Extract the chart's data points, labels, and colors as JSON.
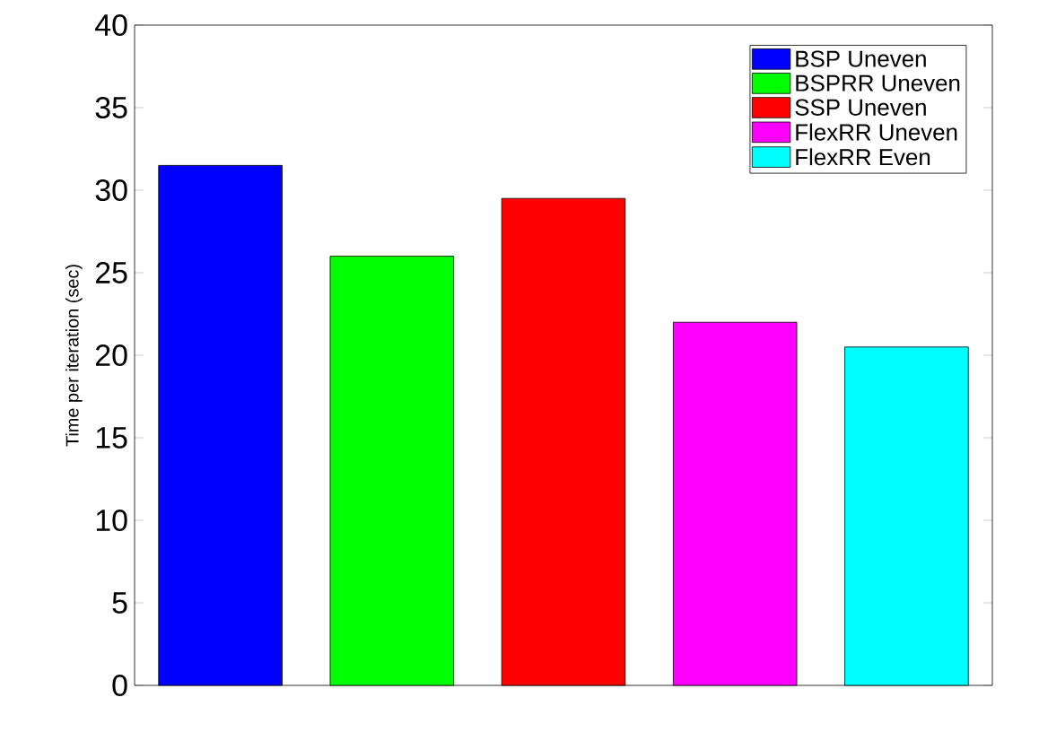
{
  "chart_data": {
    "type": "bar",
    "ylabel": "Time per iteration (sec)",
    "categories": [
      null,
      null,
      null,
      null,
      null
    ],
    "series": [
      {
        "name": "BSP Uneven",
        "color": "#0000ff",
        "values": [
          31.5,
          null,
          null,
          null,
          null
        ]
      },
      {
        "name": "BSPRR Uneven",
        "color": "#00ff00",
        "values": [
          null,
          26,
          null,
          null,
          null
        ]
      },
      {
        "name": "SSP Uneven",
        "color": "#ff0000",
        "values": [
          null,
          null,
          29.5,
          null,
          null
        ]
      },
      {
        "name": "FlexRR Uneven",
        "color": "#ff00ff",
        "values": [
          null,
          null,
          null,
          22,
          null
        ]
      },
      {
        "name": "FlexRR Even",
        "color": "#00ffff",
        "values": [
          null,
          null,
          null,
          null,
          20.5
        ]
      }
    ],
    "stacked": true,
    "ylim": [
      0,
      40
    ],
    "yticks": [
      0,
      5,
      10,
      15,
      20,
      25,
      30,
      35,
      40
    ],
    "legend": "top right",
    "tick_labels": "y"
  }
}
